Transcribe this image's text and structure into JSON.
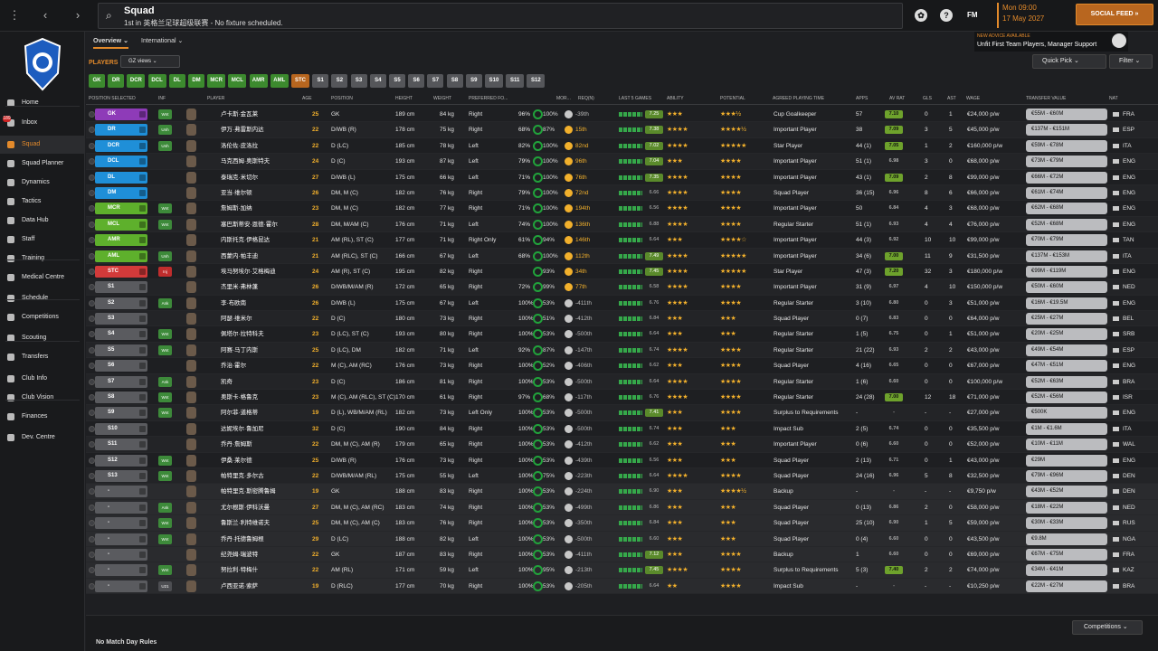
{
  "topbar": {
    "title": "Squad",
    "subtitle": "1st in 英格兰足球超级联赛 - No fixture scheduled.",
    "time": "Mon 09:00",
    "date": "17 May 2027",
    "social_label": "SOCIAL FEED",
    "fm_logo": "FM"
  },
  "sidebar": {
    "items": [
      "Home",
      "Inbox",
      "Squad",
      "Squad Planner",
      "Dynamics",
      "Tactics",
      "Data Hub",
      "Staff",
      "Training",
      "Medical Centre",
      "Schedule",
      "Competitions",
      "Scouting",
      "Transfers",
      "Club Info",
      "Club Vision",
      "Finances",
      "Dev. Centre"
    ],
    "inbox_count": "189"
  },
  "tabs": {
    "overview": "Overview",
    "international": "International"
  },
  "advice": {
    "title": "NEW ADVICE AVAILABLE",
    "text": "Unfit First Team Players, Manager Support",
    "badge": "2"
  },
  "toolbar": {
    "players_label": "PLAYERS",
    "views_label": "GZ views",
    "quick_pick": "Quick Pick",
    "filter": "Filter"
  },
  "position_chips": [
    "GK",
    "DR",
    "DCR",
    "DCL",
    "DL",
    "DM",
    "MCR",
    "MCL",
    "AMR",
    "AML",
    "STC",
    "S1",
    "S2",
    "S3",
    "S4",
    "S5",
    "S6",
    "S7",
    "S8",
    "S9",
    "S10",
    "S11",
    "S12"
  ],
  "columns": [
    "POSITION SELECTED",
    "INF",
    "PLAYER",
    "AGE",
    "POSITION",
    "HEIGHT",
    "WEIGHT",
    "PREFERRED FO...",
    "MOR...",
    "REQ(N)",
    "LAST 5 GAMES",
    "ABILITY",
    "POTENTIAL",
    "AGREED PLAYING TIME",
    "APPS",
    "AV RAT",
    "GLS",
    "AST",
    "WAGE",
    "TRANSFER VALUE",
    "NAT"
  ],
  "players": [
    {
      "sel": "GK",
      "inf": "Wnt",
      "name": "卢卡斯·金瓦莱",
      "age": "25",
      "pos": "GK",
      "h": "189 cm",
      "w": "84 kg",
      "foot": "Right",
      "fit": "96%",
      "cond": "100%",
      "req": "-39th",
      "rtg": "7.25",
      "abl": "★★★",
      "pot": "★★★½",
      "time": "Cup Goalkeeper",
      "apps": "57",
      "av": "7.10",
      "gls": "0",
      "ast": "1",
      "wage": "€24,000 p/w",
      "tv": "€55M - €60M",
      "nat": "FRA"
    },
    {
      "sel": "DR",
      "inf": "Unh",
      "name": "伊万·弗雷斯内达",
      "age": "22",
      "pos": "D/WB (R)",
      "h": "178 cm",
      "w": "75 kg",
      "foot": "Right",
      "fit": "68%",
      "cond": "87%",
      "req": "15th",
      "rtg": "7.38",
      "abl": "★★★★",
      "pot": "★★★★½",
      "time": "Important Player",
      "apps": "38",
      "av": "7.09",
      "gls": "3",
      "ast": "5",
      "wage": "€45,000 p/w",
      "tv": "€137M - €151M",
      "nat": "ESP"
    },
    {
      "sel": "DCR",
      "inf": "Unh",
      "name": "洛伦佐·皮洛拉",
      "age": "22",
      "pos": "D (LC)",
      "h": "185 cm",
      "w": "78 kg",
      "foot": "Left",
      "fit": "82%",
      "cond": "100%",
      "req": "82nd",
      "rtg": "7.02",
      "abl": "★★★★",
      "pot": "★★★★★",
      "time": "Star Player",
      "apps": "44 (1)",
      "av": "7.05",
      "gls": "1",
      "ast": "2",
      "wage": "€160,000 p/w",
      "tv": "€59M - €78M",
      "nat": "ITA"
    },
    {
      "sel": "DCL",
      "inf": "",
      "name": "马克西姆·奥斯特夫",
      "age": "24",
      "pos": "D (C)",
      "h": "193 cm",
      "w": "87 kg",
      "foot": "Left",
      "fit": "79%",
      "cond": "100%",
      "req": "96th",
      "rtg": "7.04",
      "abl": "★★★",
      "pot": "★★★★",
      "time": "Important Player",
      "apps": "51 (1)",
      "av": "6.98",
      "gls": "3",
      "ast": "0",
      "wage": "€68,000 p/w",
      "tv": "€73M - €79M",
      "nat": "ENG"
    },
    {
      "sel": "DL",
      "inf": "",
      "name": "泰瑞克·米切尔",
      "age": "27",
      "pos": "D/WB (L)",
      "h": "175 cm",
      "w": "66 kg",
      "foot": "Left",
      "fit": "71%",
      "cond": "100%",
      "req": "76th",
      "rtg": "7.35",
      "abl": "★★★★",
      "pot": "★★★★",
      "time": "Important Player",
      "apps": "43 (1)",
      "av": "7.09",
      "gls": "2",
      "ast": "8",
      "wage": "€99,000 p/w",
      "tv": "€66M - €72M",
      "nat": "ENG"
    },
    {
      "sel": "DM",
      "inf": "",
      "name": "亚当·维尔顿",
      "age": "26",
      "pos": "DM, M (C)",
      "h": "182 cm",
      "w": "76 kg",
      "foot": "Right",
      "fit": "79%",
      "cond": "100%",
      "req": "72nd",
      "rtg": "6.66",
      "abl": "★★★★",
      "pot": "★★★★",
      "time": "Squad Player",
      "apps": "36 (15)",
      "av": "6.96",
      "gls": "8",
      "ast": "6",
      "wage": "€66,000 p/w",
      "tv": "€61M - €74M",
      "nat": "ENG"
    },
    {
      "sel": "MCR",
      "inf": "Wnt",
      "name": "詹姆斯·加纳",
      "age": "23",
      "pos": "DM, M (C)",
      "h": "182 cm",
      "w": "77 kg",
      "foot": "Right",
      "fit": "71%",
      "cond": "100%",
      "req": "194th",
      "rtg": "6.56",
      "abl": "★★★★",
      "pot": "★★★★",
      "time": "Important Player",
      "apps": "50",
      "av": "6.84",
      "gls": "4",
      "ast": "3",
      "wage": "€68,000 p/w",
      "tv": "€62M - €68M",
      "nat": "ENG"
    },
    {
      "sel": "MCL",
      "inf": "Wnt",
      "name": "塞巴斯蒂安·恩德·霍尔",
      "age": "28",
      "pos": "DM, M/AM (C)",
      "h": "176 cm",
      "w": "71 kg",
      "foot": "Left",
      "fit": "74%",
      "cond": "100%",
      "req": "136th",
      "rtg": "6.88",
      "abl": "★★★★",
      "pot": "★★★★",
      "time": "Regular Starter",
      "apps": "51 (1)",
      "av": "6.93",
      "gls": "4",
      "ast": "4",
      "wage": "€76,000 p/w",
      "tv": "€52M - €68M",
      "nat": "ENG"
    },
    {
      "sel": "AMR",
      "inf": "",
      "name": "内斯托克·伊格昆达",
      "age": "21",
      "pos": "AM (RL), ST (C)",
      "h": "177 cm",
      "w": "71 kg",
      "foot": "Right Only",
      "fit": "61%",
      "cond": "94%",
      "req": "146th",
      "rtg": "6.64",
      "abl": "★★★",
      "pot": "★★★★☆",
      "time": "Important Player",
      "apps": "44 (3)",
      "av": "6.92",
      "gls": "10",
      "ast": "10",
      "wage": "€99,000 p/w",
      "tv": "€70M - €79M",
      "nat": "TAN"
    },
    {
      "sel": "AML",
      "inf": "Unh",
      "name": "西蒙内·帕丰迪",
      "age": "21",
      "pos": "AM (RLC), ST (C)",
      "h": "166 cm",
      "w": "67 kg",
      "foot": "Left",
      "fit": "68%",
      "cond": "100%",
      "req": "112th",
      "rtg": "7.49",
      "abl": "★★★★",
      "pot": "★★★★★",
      "time": "Important Player",
      "apps": "34 (6)",
      "av": "7.00",
      "gls": "11",
      "ast": "9",
      "wage": "€31,500 p/w",
      "tv": "€137M - €153M",
      "nat": "ITA"
    },
    {
      "sel": "STC",
      "inf": "Inj",
      "name": "埃马努埃尔·艾格梅迪",
      "age": "24",
      "pos": "AM (R), ST (C)",
      "h": "195 cm",
      "w": "82 kg",
      "foot": "Right",
      "fit": "",
      "cond": "93%",
      "req": "34th",
      "rtg": "7.45",
      "abl": "★★★★",
      "pot": "★★★★★",
      "time": "Star Player",
      "apps": "47 (3)",
      "av": "7.20",
      "gls": "32",
      "ast": "3",
      "wage": "€180,000 p/w",
      "tv": "€99M - €119M",
      "nat": "ENG"
    },
    {
      "sel": "S1",
      "inf": "",
      "name": "杰里米·弗林蓬",
      "age": "26",
      "pos": "D/WB/M/AM (R)",
      "h": "172 cm",
      "w": "65 kg",
      "foot": "Right",
      "fit": "72%",
      "cond": "99%",
      "req": "77th",
      "rtg": "6.58",
      "abl": "★★★★",
      "pot": "★★★★",
      "time": "Important Player",
      "apps": "31 (9)",
      "av": "6.97",
      "gls": "4",
      "ast": "10",
      "wage": "€150,000 p/w",
      "tv": "€50M - €60M",
      "nat": "NED"
    },
    {
      "sel": "S2",
      "inf": "Ank",
      "name": "李·布欧南",
      "age": "26",
      "pos": "D/WB (L)",
      "h": "175 cm",
      "w": "67 kg",
      "foot": "Left",
      "fit": "100%",
      "cond": "53%",
      "req": "-411th",
      "rtg": "6.76",
      "abl": "★★★★",
      "pot": "★★★★",
      "time": "Regular Starter",
      "apps": "3 (10)",
      "av": "6.80",
      "gls": "0",
      "ast": "3",
      "wage": "€51,000 p/w",
      "tv": "€16M - €19.5M",
      "nat": "ENG"
    },
    {
      "sel": "S3",
      "inf": "",
      "name": "阿瑟·维米尔",
      "age": "22",
      "pos": "D (C)",
      "h": "180 cm",
      "w": "73 kg",
      "foot": "Right",
      "fit": "100%",
      "cond": "51%",
      "req": "-412th",
      "rtg": "6.84",
      "abl": "★★★",
      "pot": "★★★",
      "time": "Squad Player",
      "apps": "0 (7)",
      "av": "6.83",
      "gls": "0",
      "ast": "0",
      "wage": "€64,000 p/w",
      "tv": "€25M - €27M",
      "nat": "BEL"
    },
    {
      "sel": "S4",
      "inf": "Wnt",
      "name": "佩塔尔·拉特科夫",
      "age": "23",
      "pos": "D (LC), ST (C)",
      "h": "193 cm",
      "w": "80 kg",
      "foot": "Right",
      "fit": "100%",
      "cond": "53%",
      "req": "-500th",
      "rtg": "6.64",
      "abl": "★★★",
      "pot": "★★★",
      "time": "Regular Starter",
      "apps": "1 (5)",
      "av": "6.75",
      "gls": "0",
      "ast": "1",
      "wage": "€51,000 p/w",
      "tv": "€20M - €25M",
      "nat": "SRB"
    },
    {
      "sel": "S5",
      "inf": "Wnt",
      "name": "阿赛·马丁内斯",
      "age": "25",
      "pos": "D (LC), DM",
      "h": "182 cm",
      "w": "71 kg",
      "foot": "Left",
      "fit": "92%",
      "cond": "87%",
      "req": "-147th",
      "rtg": "6.74",
      "abl": "★★★★",
      "pot": "★★★★",
      "time": "Regular Starter",
      "apps": "21 (22)",
      "av": "6.93",
      "gls": "2",
      "ast": "2",
      "wage": "€43,000 p/w",
      "tv": "€49M - €54M",
      "nat": "ESP"
    },
    {
      "sel": "S6",
      "inf": "",
      "name": "乔治·霍尔",
      "age": "22",
      "pos": "M (C), AM (RC)",
      "h": "176 cm",
      "w": "73 kg",
      "foot": "Right",
      "fit": "100%",
      "cond": "52%",
      "req": "-406th",
      "rtg": "6.62",
      "abl": "★★★",
      "pot": "★★★★",
      "time": "Squad Player",
      "apps": "4 (16)",
      "av": "6.65",
      "gls": "0",
      "ast": "0",
      "wage": "€67,000 p/w",
      "tv": "€47M - €51M",
      "nat": "ENG"
    },
    {
      "sel": "S7",
      "inf": "Ank",
      "name": "凯奇",
      "age": "23",
      "pos": "D (C)",
      "h": "186 cm",
      "w": "81 kg",
      "foot": "Right",
      "fit": "100%",
      "cond": "53%",
      "req": "-500th",
      "rtg": "6.64",
      "abl": "★★★★",
      "pot": "★★★★",
      "time": "Regular Starter",
      "apps": "1 (6)",
      "av": "6.60",
      "gls": "0",
      "ast": "0",
      "wage": "€100,000 p/w",
      "tv": "€52M - €63M",
      "nat": "BRA"
    },
    {
      "sel": "S8",
      "inf": "Wnt",
      "name": "奥斯卡·格鲁克",
      "age": "23",
      "pos": "M (C), AM (RLC), ST (C)",
      "h": "170 cm",
      "w": "61 kg",
      "foot": "Right",
      "fit": "97%",
      "cond": "68%",
      "req": "-117th",
      "rtg": "6.76",
      "abl": "★★★★",
      "pot": "★★★★",
      "time": "Regular Starter",
      "apps": "24 (28)",
      "av": "7.00",
      "gls": "12",
      "ast": "18",
      "wage": "€71,000 p/w",
      "tv": "€52M - €56M",
      "nat": "ISR"
    },
    {
      "sel": "S9",
      "inf": "Wnt",
      "name": "阿尔菲·道格蒂",
      "age": "19",
      "pos": "D (L), WB/M/AM (RL)",
      "h": "182 cm",
      "w": "73 kg",
      "foot": "Left Only",
      "fit": "100%",
      "cond": "53%",
      "req": "-500th",
      "rtg": "7.41",
      "abl": "★★★",
      "pot": "★★★★",
      "time": "Surplus to Requirements",
      "apps": "-",
      "av": "-",
      "gls": "-",
      "ast": "-",
      "wage": "€27,000 p/w",
      "tv": "€500K",
      "nat": "ENG"
    },
    {
      "sel": "S10",
      "inf": "",
      "name": "达妮埃尔·鲁加尼",
      "age": "32",
      "pos": "D (C)",
      "h": "190 cm",
      "w": "84 kg",
      "foot": "Right",
      "fit": "100%",
      "cond": "53%",
      "req": "-500th",
      "rtg": "6.74",
      "abl": "★★★",
      "pot": "★★★",
      "time": "Impact Sub",
      "apps": "2 (5)",
      "av": "6.74",
      "gls": "0",
      "ast": "0",
      "wage": "€35,500 p/w",
      "tv": "€1M - €1.6M",
      "nat": "ITA"
    },
    {
      "sel": "S11",
      "inf": "",
      "name": "乔丹·詹姆斯",
      "age": "22",
      "pos": "DM, M (C), AM (R)",
      "h": "179 cm",
      "w": "65 kg",
      "foot": "Right",
      "fit": "100%",
      "cond": "53%",
      "req": "-412th",
      "rtg": "6.62",
      "abl": "★★★",
      "pot": "★★★",
      "time": "Important Player",
      "apps": "0 (6)",
      "av": "6.60",
      "gls": "0",
      "ast": "0",
      "wage": "€52,000 p/w",
      "tv": "€10M - €11M",
      "nat": "WAL"
    },
    {
      "sel": "S12",
      "inf": "Wnt",
      "name": "伊桑·莱尔德",
      "age": "25",
      "pos": "D/WB (R)",
      "h": "176 cm",
      "w": "73 kg",
      "foot": "Right",
      "fit": "100%",
      "cond": "53%",
      "req": "-439th",
      "rtg": "6.56",
      "abl": "★★★",
      "pot": "★★★",
      "time": "Squad Player",
      "apps": "2 (13)",
      "av": "6.71",
      "gls": "0",
      "ast": "1",
      "wage": "€43,000 p/w",
      "tv": "€29M",
      "nat": "ENG"
    },
    {
      "sel": "S13",
      "inf": "Wnt",
      "name": "帕特里克·多尔古",
      "age": "22",
      "pos": "D/WB/M/AM (RL)",
      "h": "175 cm",
      "w": "55 kg",
      "foot": "Left",
      "fit": "100%",
      "cond": "75%",
      "req": "-223th",
      "rtg": "6.64",
      "abl": "★★★★",
      "pot": "★★★★",
      "time": "Squad Player",
      "apps": "24 (16)",
      "av": "6.96",
      "gls": "5",
      "ast": "8",
      "wage": "€32,500 p/w",
      "tv": "€79M - €96M",
      "nat": "DEN"
    },
    {
      "sel": "-",
      "inf": "",
      "name": "帕特里克·斯密腾鲁姆",
      "age": "19",
      "pos": "GK",
      "h": "188 cm",
      "w": "83 kg",
      "foot": "Right",
      "fit": "100%",
      "cond": "53%",
      "req": "-224th",
      "rtg": "6.90",
      "abl": "★★★",
      "pot": "★★★★½",
      "time": "Backup",
      "apps": "-",
      "av": "-",
      "gls": "-",
      "ast": "-",
      "wage": "€9,750 p/w",
      "tv": "€43M - €52M",
      "nat": "DEN"
    },
    {
      "sel": "-",
      "inf": "Ank",
      "name": "尤尔根斯·伊科沃曼",
      "age": "27",
      "pos": "DM, M (C), AM (RC)",
      "h": "183 cm",
      "w": "74 kg",
      "foot": "Right",
      "fit": "100%",
      "cond": "53%",
      "req": "-499th",
      "rtg": "6.86",
      "abl": "★★★",
      "pot": "★★★",
      "time": "Squad Player",
      "apps": "0 (13)",
      "av": "6.86",
      "gls": "2",
      "ast": "0",
      "wage": "€58,000 p/w",
      "tv": "€18M - €22M",
      "nat": "NED"
    },
    {
      "sel": "-",
      "inf": "Wnt",
      "name": "鲁斯兰·利特维诺夫",
      "age": "25",
      "pos": "DM, M (C), AM (C)",
      "h": "183 cm",
      "w": "76 kg",
      "foot": "Right",
      "fit": "100%",
      "cond": "53%",
      "req": "-350th",
      "rtg": "6.84",
      "abl": "★★★",
      "pot": "★★★",
      "time": "Squad Player",
      "apps": "25 (10)",
      "av": "6.90",
      "gls": "1",
      "ast": "5",
      "wage": "€59,000 p/w",
      "tv": "€30M - €33M",
      "nat": "RUS"
    },
    {
      "sel": "-",
      "inf": "Wnt",
      "name": "乔丹·托德鲁姆根",
      "age": "29",
      "pos": "D (LC)",
      "h": "188 cm",
      "w": "82 kg",
      "foot": "Left",
      "fit": "100%",
      "cond": "53%",
      "req": "-500th",
      "rtg": "6.60",
      "abl": "★★★",
      "pot": "★★★",
      "time": "Squad Player",
      "apps": "0 (4)",
      "av": "6.60",
      "gls": "0",
      "ast": "0",
      "wage": "€43,500 p/w",
      "tv": "€9.8M",
      "nat": "NGA"
    },
    {
      "sel": "-",
      "inf": "",
      "name": "纪尧姆·瑞波特",
      "age": "22",
      "pos": "GK",
      "h": "187 cm",
      "w": "83 kg",
      "foot": "Right",
      "fit": "100%",
      "cond": "53%",
      "req": "-411th",
      "rtg": "7.12",
      "abl": "★★★",
      "pot": "★★★★",
      "time": "Backup",
      "apps": "1",
      "av": "6.60",
      "gls": "0",
      "ast": "0",
      "wage": "€69,000 p/w",
      "tv": "€67M - €75M",
      "nat": "FRA"
    },
    {
      "sel": "-",
      "inf": "Wnt",
      "name": "努拉利·特梅什",
      "age": "22",
      "pos": "AM (RL)",
      "h": "171 cm",
      "w": "59 kg",
      "foot": "Left",
      "fit": "100%",
      "cond": "95%",
      "req": "-213th",
      "rtg": "7.45",
      "abl": "★★★★",
      "pot": "★★★★",
      "time": "Surplus to Requirements",
      "apps": "5 (3)",
      "av": "7.40",
      "gls": "2",
      "ast": "2",
      "wage": "€74,000 p/w",
      "tv": "€34M - €41M",
      "nat": "KAZ"
    },
    {
      "sel": "-",
      "inf": "U21",
      "name": "卢西亚诺·索萨",
      "age": "19",
      "pos": "D (RLC)",
      "h": "177 cm",
      "w": "70 kg",
      "foot": "Right",
      "fit": "100%",
      "cond": "53%",
      "req": "-205th",
      "rtg": "6.64",
      "abl": "★★",
      "pot": "★★★★",
      "time": "Impact Sub",
      "apps": "-",
      "av": "-",
      "gls": "-",
      "ast": "-",
      "wage": "€10,250 p/w",
      "tv": "€22M - €27M",
      "nat": "BRA"
    }
  ],
  "bottom": {
    "rules": "No Match Day Rules",
    "competitions": "Competitions"
  },
  "colors": {
    "accent": "#e38a2b",
    "gk": "#8e3bb8",
    "def": "#1f8fd8",
    "mid": "#5eb02c",
    "att": "#d33a3a",
    "sub": "#5a5b5f"
  }
}
